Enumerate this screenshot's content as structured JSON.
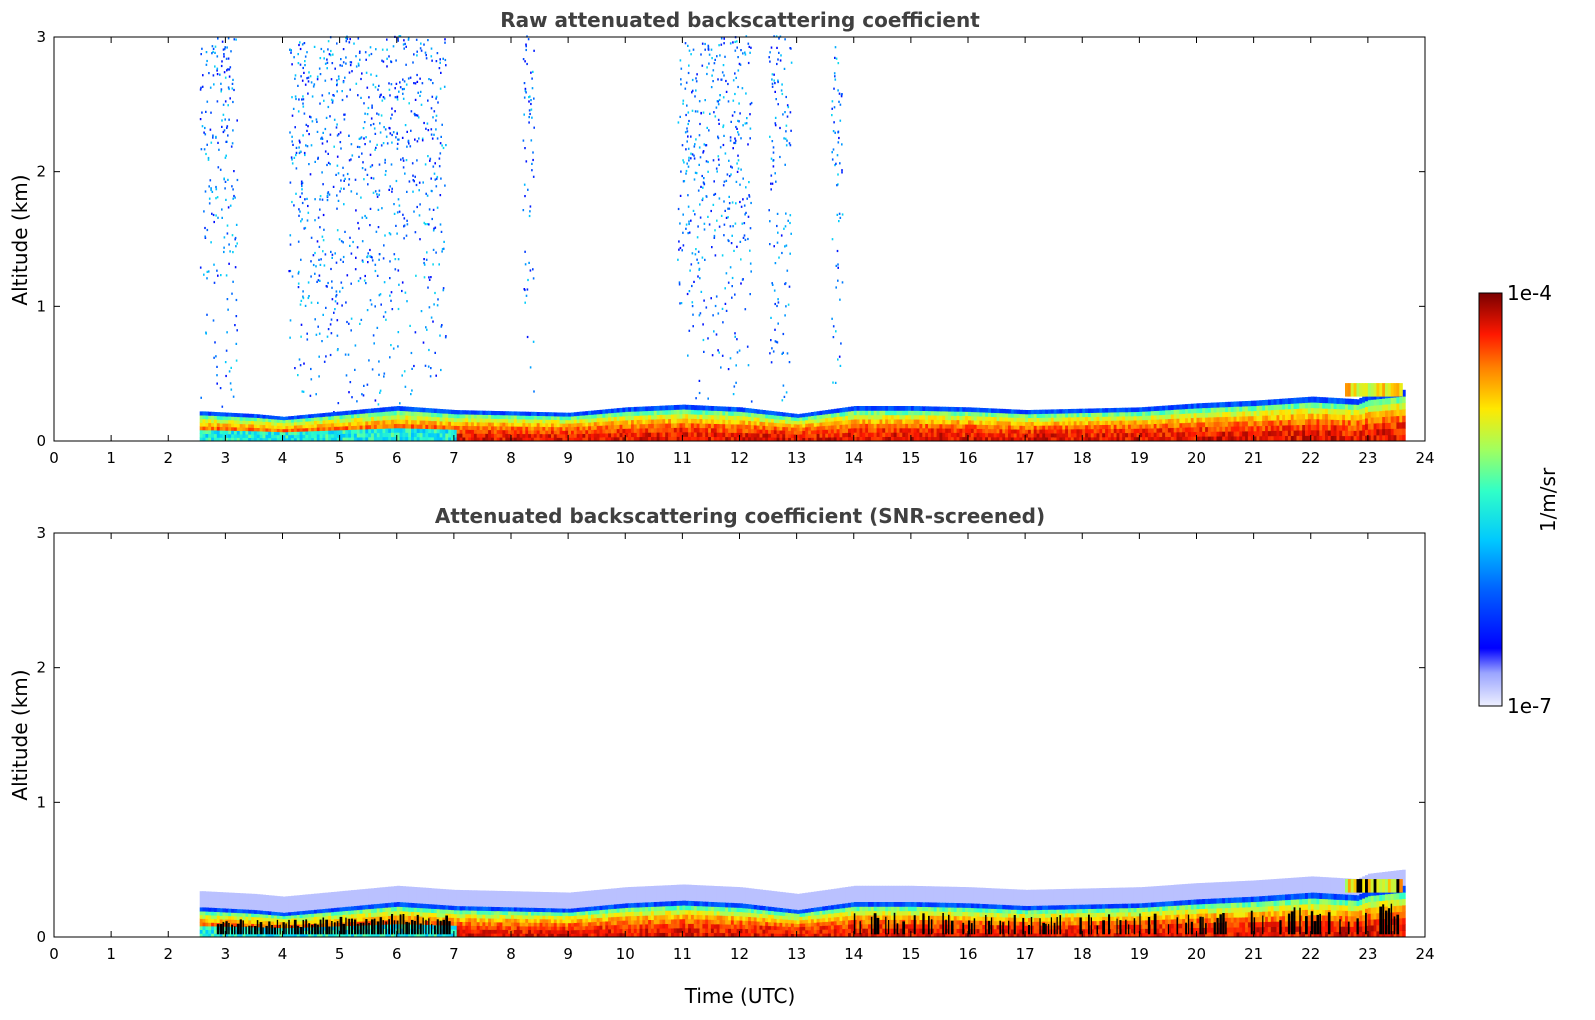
{
  "chart_data": [
    {
      "type": "heatmap",
      "title": "Raw attenuated backscattering coefficient",
      "xlabel": "",
      "ylabel": "Altitude (km)",
      "xlim": [
        0,
        24
      ],
      "ylim": [
        0,
        3
      ],
      "x_ticks": [
        "0",
        "1",
        "2",
        "3",
        "4",
        "5",
        "6",
        "7",
        "8",
        "9",
        "10",
        "11",
        "12",
        "13",
        "14",
        "15",
        "16",
        "17",
        "18",
        "19",
        "20",
        "21",
        "22",
        "23",
        "24"
      ],
      "y_ticks": [
        "0",
        "1",
        "2",
        "3"
      ],
      "data_window_utc": [
        2.55,
        23.65
      ],
      "layers": [
        {
          "name": "bottom",
          "x": [
            2.6,
            3.5,
            4.0,
            5.0,
            6.0,
            7.0,
            8.0,
            9.0,
            10.0,
            11.0,
            12.0,
            13.0,
            14.0,
            15.0,
            16.0,
            17.0,
            18.0,
            19.0,
            20.0,
            21.0,
            22.0,
            22.8,
            23.0,
            23.6
          ],
          "top_km": [
            0.22,
            0.2,
            0.18,
            0.22,
            0.26,
            0.23,
            0.22,
            0.21,
            0.25,
            0.27,
            0.25,
            0.2,
            0.26,
            0.26,
            0.25,
            0.23,
            0.24,
            0.25,
            0.28,
            0.3,
            0.33,
            0.31,
            0.35,
            0.38
          ],
          "level": 0.92
        },
        {
          "name": "aloft",
          "x": [
            22.6,
            23.6
          ],
          "bottom_km": [
            0.33,
            0.33
          ],
          "top_km": [
            0.43,
            0.43
          ],
          "level": 0.72
        }
      ],
      "noise_columns_utc": [
        [
          2.55,
          3.2
        ],
        [
          4.1,
          6.85
        ],
        [
          8.2,
          8.4
        ],
        [
          10.9,
          12.2
        ],
        [
          12.5,
          12.9
        ],
        [
          13.6,
          13.8
        ]
      ],
      "colorbar": {
        "min_label": "1e-7",
        "max_label": "1e-4",
        "unit": "1/m/sr",
        "scale": "log"
      }
    },
    {
      "type": "heatmap",
      "title": "Attenuated backscattering coefficient (SNR-screened)",
      "xlabel": "Time (UTC)",
      "ylabel": "Altitude (km)",
      "xlim": [
        0,
        24
      ],
      "ylim": [
        0,
        3
      ],
      "x_ticks": [
        "0",
        "1",
        "2",
        "3",
        "4",
        "5",
        "6",
        "7",
        "8",
        "9",
        "10",
        "11",
        "12",
        "13",
        "14",
        "15",
        "16",
        "17",
        "18",
        "19",
        "20",
        "21",
        "22",
        "23",
        "24"
      ],
      "y_ticks": [
        "0",
        "1",
        "2",
        "3"
      ],
      "data_window_utc": [
        2.55,
        23.65
      ],
      "screened_out_color": "#000000",
      "colorbar": {
        "min_label": "1e-7",
        "max_label": "1e-4",
        "unit": "1/m/sr",
        "scale": "log"
      }
    }
  ],
  "colorbar": {
    "max_label": "1e-4",
    "min_label": "1e-7",
    "unit_label": "1/m/sr"
  }
}
